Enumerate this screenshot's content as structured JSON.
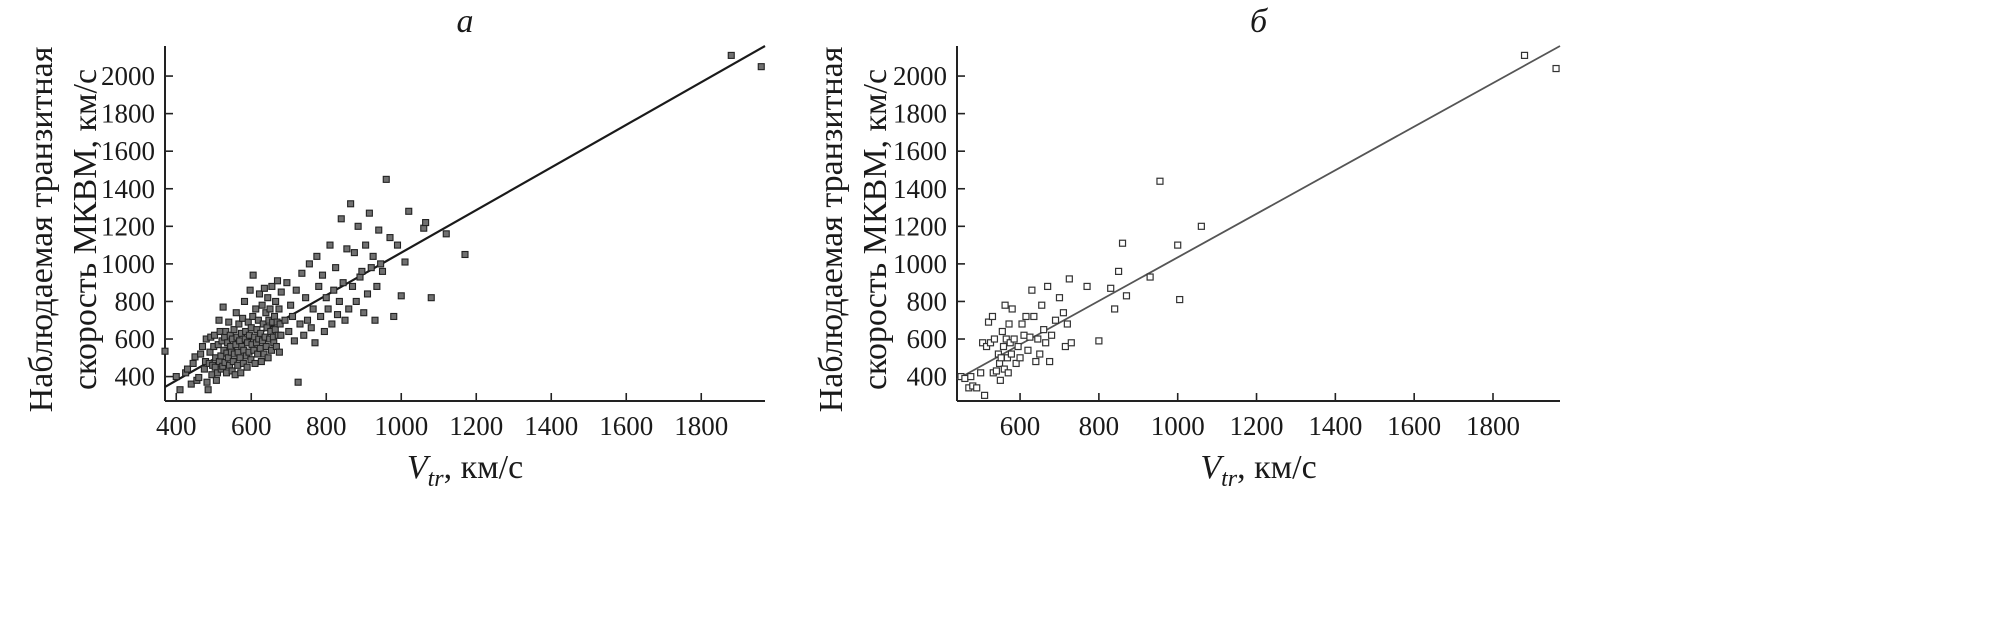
{
  "chart_data": [
    {
      "type": "scatter",
      "title": "а",
      "xlabel": "км/с",
      "xlabel_symbol": "V",
      "xlabel_subscript": "tr",
      "ylabel_line1": "Наблюдаемая транзитная",
      "ylabel_line2": "скорость МКВМ, км/с",
      "xlim": [
        370,
        1970
      ],
      "ylim": [
        270,
        2160
      ],
      "xticks": [
        400,
        600,
        800,
        1000,
        1200,
        1400,
        1600,
        1800
      ],
      "yticks": [
        400,
        600,
        800,
        1000,
        1200,
        1400,
        1600,
        1800,
        2000
      ],
      "fit_line": {
        "x": [
          370,
          1970
        ],
        "y": [
          345,
          2160
        ]
      },
      "marker": "filled-square",
      "points": [
        [
          370,
          535
        ],
        [
          400,
          400
        ],
        [
          410,
          330
        ],
        [
          425,
          420
        ],
        [
          430,
          440
        ],
        [
          440,
          360
        ],
        [
          445,
          470
        ],
        [
          450,
          505
        ],
        [
          455,
          380
        ],
        [
          460,
          395
        ],
        [
          465,
          520
        ],
        [
          470,
          560
        ],
        [
          475,
          440
        ],
        [
          478,
          480
        ],
        [
          480,
          600
        ],
        [
          482,
          370
        ],
        [
          485,
          330
        ],
        [
          488,
          470
        ],
        [
          490,
          530
        ],
        [
          492,
          610
        ],
        [
          495,
          410
        ],
        [
          497,
          460
        ],
        [
          500,
          560
        ],
        [
          502,
          620
        ],
        [
          504,
          450
        ],
        [
          505,
          500
        ],
        [
          507,
          380
        ],
        [
          510,
          420
        ],
        [
          512,
          570
        ],
        [
          514,
          700
        ],
        [
          515,
          480
        ],
        [
          517,
          640
        ],
        [
          519,
          510
        ],
        [
          520,
          440
        ],
        [
          522,
          590
        ],
        [
          524,
          455
        ],
        [
          525,
          770
        ],
        [
          527,
          540
        ],
        [
          529,
          610
        ],
        [
          530,
          475
        ],
        [
          532,
          640
        ],
        [
          534,
          420
        ],
        [
          535,
          525
        ],
        [
          537,
          580
        ],
        [
          539,
          500
        ],
        [
          540,
          690
        ],
        [
          542,
          460
        ],
        [
          544,
          620
        ],
        [
          545,
          560
        ],
        [
          547,
          530
        ],
        [
          549,
          430
        ],
        [
          550,
          600
        ],
        [
          552,
          480
        ],
        [
          554,
          650
        ],
        [
          555,
          520
        ],
        [
          557,
          410
        ],
        [
          559,
          570
        ],
        [
          560,
          740
        ],
        [
          562,
          610
        ],
        [
          564,
          460
        ],
        [
          565,
          530
        ],
        [
          567,
          680
        ],
        [
          569,
          590
        ],
        [
          570,
          500
        ],
        [
          572,
          420
        ],
        [
          574,
          630
        ],
        [
          575,
          560
        ],
        [
          577,
          710
        ],
        [
          579,
          470
        ],
        [
          580,
          540
        ],
        [
          582,
          800
        ],
        [
          584,
          600
        ],
        [
          585,
          640
        ],
        [
          587,
          510
        ],
        [
          589,
          450
        ],
        [
          590,
          580
        ],
        [
          592,
          690
        ],
        [
          594,
          530
        ],
        [
          595,
          620
        ],
        [
          597,
          860
        ],
        [
          599,
          490
        ],
        [
          600,
          660
        ],
        [
          602,
          570
        ],
        [
          604,
          720
        ],
        [
          605,
          940
        ],
        [
          607,
          540
        ],
        [
          609,
          610
        ],
        [
          610,
          470
        ],
        [
          612,
          760
        ],
        [
          614,
          580
        ],
        [
          615,
          650
        ],
        [
          617,
          520
        ],
        [
          619,
          700
        ],
        [
          620,
          600
        ],
        [
          622,
          840
        ],
        [
          624,
          550
        ],
        [
          625,
          630
        ],
        [
          627,
          480
        ],
        [
          629,
          780
        ],
        [
          630,
          590
        ],
        [
          632,
          680
        ],
        [
          634,
          520
        ],
        [
          635,
          870
        ],
        [
          637,
          610
        ],
        [
          639,
          740
        ],
        [
          640,
          560
        ],
        [
          642,
          660
        ],
        [
          644,
          820
        ],
        [
          645,
          500
        ],
        [
          647,
          700
        ],
        [
          649,
          600
        ],
        [
          650,
          760
        ],
        [
          652,
          640
        ],
        [
          654,
          540
        ],
        [
          655,
          880
        ],
        [
          657,
          690
        ],
        [
          659,
          610
        ],
        [
          660,
          580
        ],
        [
          662,
          720
        ],
        [
          664,
          650
        ],
        [
          665,
          800
        ],
        [
          667,
          560
        ],
        [
          669,
          690
        ],
        [
          670,
          910
        ],
        [
          672,
          620
        ],
        [
          674,
          760
        ],
        [
          675,
          530
        ],
        [
          677,
          680
        ],
        [
          679,
          620
        ],
        [
          680,
          850
        ],
        [
          690,
          700
        ],
        [
          695,
          900
        ],
        [
          700,
          640
        ],
        [
          705,
          780
        ],
        [
          710,
          720
        ],
        [
          715,
          590
        ],
        [
          720,
          860
        ],
        [
          725,
          370
        ],
        [
          730,
          680
        ],
        [
          735,
          950
        ],
        [
          740,
          620
        ],
        [
          745,
          820
        ],
        [
          750,
          700
        ],
        [
          755,
          1000
        ],
        [
          760,
          660
        ],
        [
          765,
          760
        ],
        [
          770,
          580
        ],
        [
          775,
          1040
        ],
        [
          780,
          880
        ],
        [
          785,
          720
        ],
        [
          790,
          940
        ],
        [
          795,
          640
        ],
        [
          800,
          820
        ],
        [
          805,
          760
        ],
        [
          810,
          1100
        ],
        [
          815,
          680
        ],
        [
          820,
          860
        ],
        [
          825,
          980
        ],
        [
          830,
          730
        ],
        [
          835,
          800
        ],
        [
          840,
          1240
        ],
        [
          845,
          900
        ],
        [
          850,
          700
        ],
        [
          855,
          1080
        ],
        [
          860,
          760
        ],
        [
          865,
          1320
        ],
        [
          870,
          880
        ],
        [
          875,
          1060
        ],
        [
          880,
          800
        ],
        [
          885,
          1200
        ],
        [
          890,
          930
        ],
        [
          895,
          960
        ],
        [
          900,
          740
        ],
        [
          905,
          1100
        ],
        [
          910,
          840
        ],
        [
          915,
          1270
        ],
        [
          920,
          980
        ],
        [
          925,
          1040
        ],
        [
          930,
          700
        ],
        [
          935,
          880
        ],
        [
          940,
          1180
        ],
        [
          945,
          1000
        ],
        [
          950,
          960
        ],
        [
          960,
          1450
        ],
        [
          970,
          1140
        ],
        [
          980,
          720
        ],
        [
          990,
          1100
        ],
        [
          1000,
          830
        ],
        [
          1010,
          1010
        ],
        [
          1020,
          1280
        ],
        [
          1060,
          1190
        ],
        [
          1065,
          1220
        ],
        [
          1080,
          820
        ],
        [
          1120,
          1160
        ],
        [
          1170,
          1050
        ],
        [
          1880,
          2110
        ],
        [
          1960,
          2050
        ]
      ]
    },
    {
      "type": "scatter",
      "title": "б",
      "xlabel": "км/с",
      "xlabel_symbol": "V",
      "xlabel_subscript": "tr",
      "ylabel_line1": "Наблюдаемая транзитная",
      "ylabel_line2": "скорость МКВМ, км/с",
      "xlim": [
        440,
        1970
      ],
      "ylim": [
        270,
        2160
      ],
      "xticks": [
        600,
        800,
        1000,
        1200,
        1400,
        1600,
        1800
      ],
      "yticks": [
        400,
        600,
        800,
        1000,
        1200,
        1400,
        1600,
        1800,
        2000
      ],
      "fit_line": {
        "x": [
          440,
          1970
        ],
        "y": [
          385,
          2160
        ]
      },
      "marker": "open-square",
      "points": [
        [
          450,
          400
        ],
        [
          460,
          390
        ],
        [
          470,
          340
        ],
        [
          475,
          400
        ],
        [
          480,
          350
        ],
        [
          490,
          340
        ],
        [
          500,
          420
        ],
        [
          505,
          580
        ],
        [
          510,
          300
        ],
        [
          515,
          560
        ],
        [
          520,
          690
        ],
        [
          525,
          580
        ],
        [
          530,
          720
        ],
        [
          532,
          420
        ],
        [
          535,
          600
        ],
        [
          540,
          430
        ],
        [
          545,
          520
        ],
        [
          548,
          470
        ],
        [
          550,
          380
        ],
        [
          552,
          500
        ],
        [
          555,
          640
        ],
        [
          558,
          560
        ],
        [
          560,
          440
        ],
        [
          562,
          780
        ],
        [
          565,
          600
        ],
        [
          568,
          500
        ],
        [
          570,
          420
        ],
        [
          572,
          680
        ],
        [
          575,
          580
        ],
        [
          578,
          520
        ],
        [
          580,
          760
        ],
        [
          585,
          600
        ],
        [
          590,
          470
        ],
        [
          595,
          560
        ],
        [
          600,
          500
        ],
        [
          605,
          680
        ],
        [
          610,
          620
        ],
        [
          615,
          720
        ],
        [
          620,
          540
        ],
        [
          625,
          610
        ],
        [
          630,
          860
        ],
        [
          635,
          720
        ],
        [
          640,
          480
        ],
        [
          645,
          600
        ],
        [
          650,
          520
        ],
        [
          655,
          780
        ],
        [
          660,
          650
        ],
        [
          665,
          580
        ],
        [
          670,
          880
        ],
        [
          675,
          480
        ],
        [
          680,
          620
        ],
        [
          690,
          700
        ],
        [
          700,
          820
        ],
        [
          710,
          740
        ],
        [
          715,
          560
        ],
        [
          720,
          680
        ],
        [
          725,
          920
        ],
        [
          730,
          580
        ],
        [
          770,
          880
        ],
        [
          800,
          590
        ],
        [
          830,
          870
        ],
        [
          840,
          760
        ],
        [
          850,
          960
        ],
        [
          860,
          1110
        ],
        [
          870,
          830
        ],
        [
          930,
          930
        ],
        [
          955,
          1440
        ],
        [
          1000,
          1100
        ],
        [
          1005,
          810
        ],
        [
          1060,
          1200
        ],
        [
          1880,
          2110
        ],
        [
          1960,
          2040
        ]
      ]
    }
  ]
}
